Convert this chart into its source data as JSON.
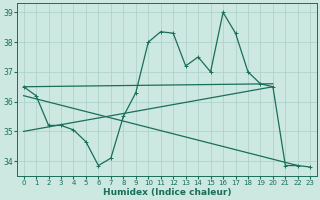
{
  "xlabel": "Humidex (Indice chaleur)",
  "xlim": [
    -0.5,
    23.5
  ],
  "ylim": [
    33.5,
    39.3
  ],
  "yticks": [
    34,
    35,
    36,
    37,
    38,
    39
  ],
  "xticks": [
    0,
    1,
    2,
    3,
    4,
    5,
    6,
    7,
    8,
    9,
    10,
    11,
    12,
    13,
    14,
    15,
    16,
    17,
    18,
    19,
    20,
    21,
    22,
    23
  ],
  "bg_color": "#cce8e0",
  "line_color": "#1a6e5a",
  "grid_color": "#aacfca",
  "series": {
    "main": {
      "x": [
        0,
        1,
        2,
        3,
        4,
        5,
        6,
        7,
        8,
        9,
        10,
        11,
        12,
        13,
        14,
        15,
        16,
        17,
        18,
        19,
        20,
        21,
        22,
        23
      ],
      "y": [
        36.5,
        36.2,
        35.2,
        35.2,
        35.05,
        34.65,
        33.85,
        34.1,
        35.5,
        36.3,
        38.0,
        38.35,
        38.3,
        37.2,
        37.5,
        37.0,
        39.0,
        38.3,
        37.0,
        36.6,
        36.5,
        33.85,
        33.85,
        33.8
      ]
    },
    "trend1": {
      "x": [
        0,
        20
      ],
      "y": [
        36.5,
        36.6
      ]
    },
    "trend2": {
      "x": [
        0,
        20
      ],
      "y": [
        35.0,
        36.5
      ]
    },
    "trend3": {
      "x": [
        0,
        22
      ],
      "y": [
        36.2,
        33.85
      ]
    }
  }
}
